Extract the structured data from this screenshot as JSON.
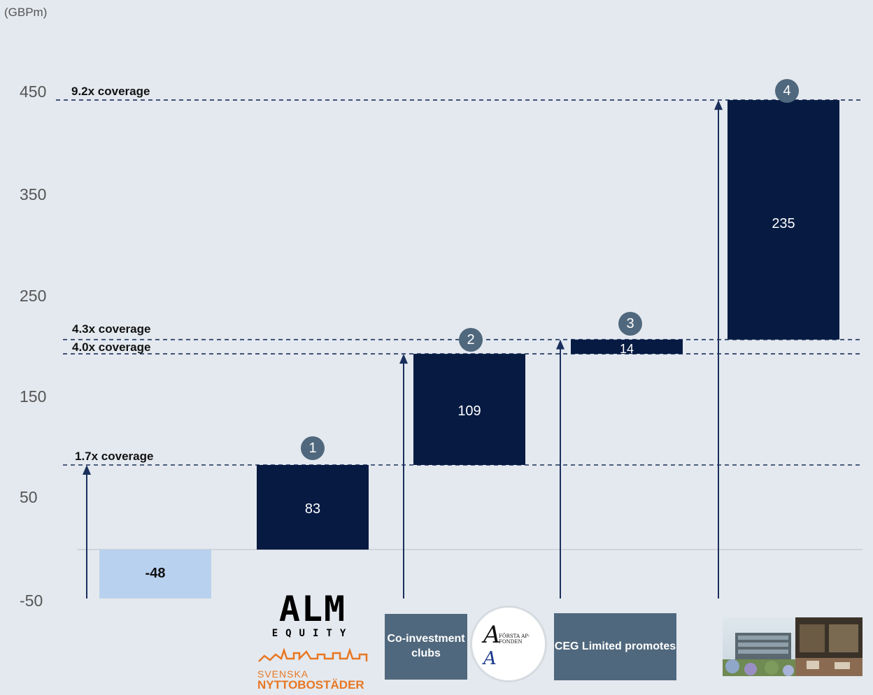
{
  "unit_label": "(GBPm)",
  "chart_data": {
    "type": "bar",
    "subtype": "waterfall",
    "ylabel": "(GBPm)",
    "yticks": [
      "450",
      "350",
      "250",
      "150",
      "50",
      "-50"
    ],
    "ylim": [
      -50,
      450
    ],
    "bars": [
      {
        "value": -48,
        "label": "-48",
        "start": 0,
        "end": -48,
        "color": "#b8d1ee"
      },
      {
        "value": 83,
        "label": "83",
        "start": 0,
        "end": 83,
        "color": "#061a42",
        "badge": "1"
      },
      {
        "value": 109,
        "label": "109",
        "start": 83,
        "end": 192,
        "color": "#061a42",
        "badge": "2"
      },
      {
        "value": 14,
        "label": "14",
        "start": 192,
        "end": 206,
        "color": "#061a42",
        "badge": "3"
      },
      {
        "value": 235,
        "label": "235",
        "start": 206,
        "end": 441,
        "color": "#061a42",
        "badge": "4"
      }
    ],
    "coverage_lines": [
      {
        "label": "9.2x coverage",
        "value": 441
      },
      {
        "label": "4.3x coverage",
        "value": 206
      },
      {
        "label": "4.0x coverage",
        "value": 192
      },
      {
        "label": "1.7x coverage",
        "value": 83
      }
    ],
    "legend": "none",
    "grid": false
  },
  "logos": {
    "alm_word": "ALM",
    "alm_equity": "EQUITY",
    "svenska": "SVENSKA",
    "nyttobostader": "NYTTOBOSTÄDER",
    "forsta_ap_fonden": "FÖRSTA AP-FONDEN"
  },
  "tiles": {
    "coinvestment": "Co-investment clubs",
    "ceg": "CEG Limited promotes"
  },
  "colors": {
    "background": "#e4e9ef",
    "bar_dark": "#061a42",
    "bar_light": "#b8d1ee",
    "badge": "#50687d",
    "tile": "#50687d"
  }
}
